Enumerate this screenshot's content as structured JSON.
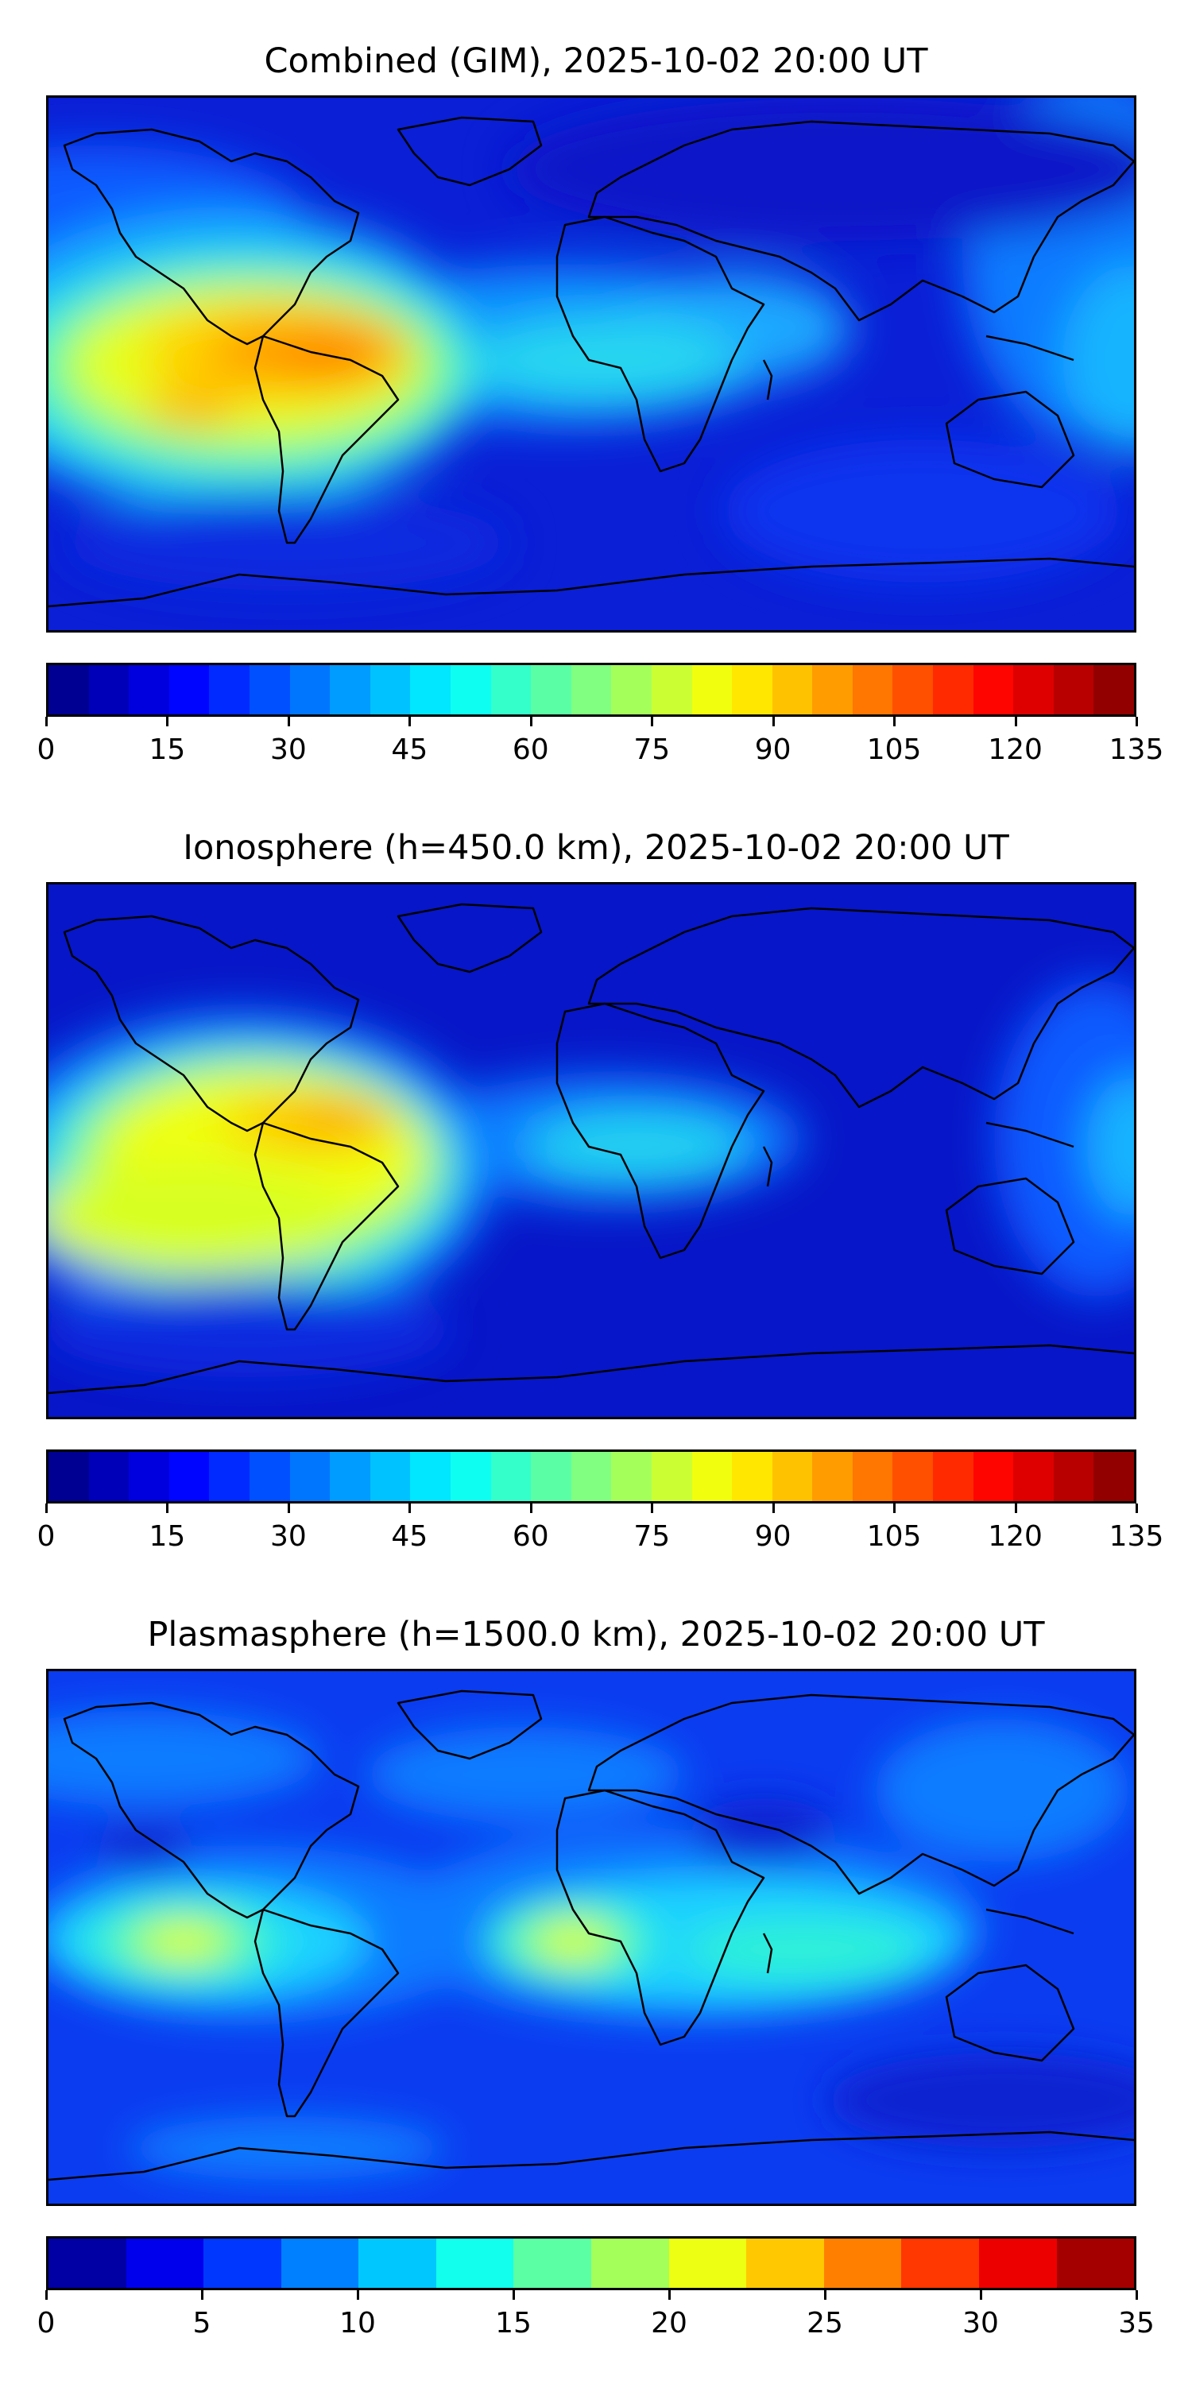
{
  "panels": [
    {
      "title": "Combined (GIM), 2025-10-02 20:00 UT",
      "colorbar": {
        "min": 0,
        "max": 135,
        "levels": 27,
        "ticks": [
          "0",
          "15",
          "30",
          "45",
          "60",
          "75",
          "90",
          "105",
          "120",
          "135"
        ]
      }
    },
    {
      "title": "Ionosphere  (h=450.0 km), 2025-10-02 20:00 UT",
      "colorbar": {
        "min": 0,
        "max": 135,
        "levels": 27,
        "ticks": [
          "0",
          "15",
          "30",
          "45",
          "60",
          "75",
          "90",
          "105",
          "120",
          "135"
        ]
      }
    },
    {
      "title": "Plasmasphere (h=1500.0 km), 2025-10-02 20:00 UT",
      "colorbar": {
        "min": 0,
        "max": 35,
        "levels": 14,
        "ticks": [
          "0",
          "5",
          "10",
          "15",
          "20",
          "25",
          "30",
          "35"
        ]
      }
    }
  ],
  "colormap": "jet"
}
